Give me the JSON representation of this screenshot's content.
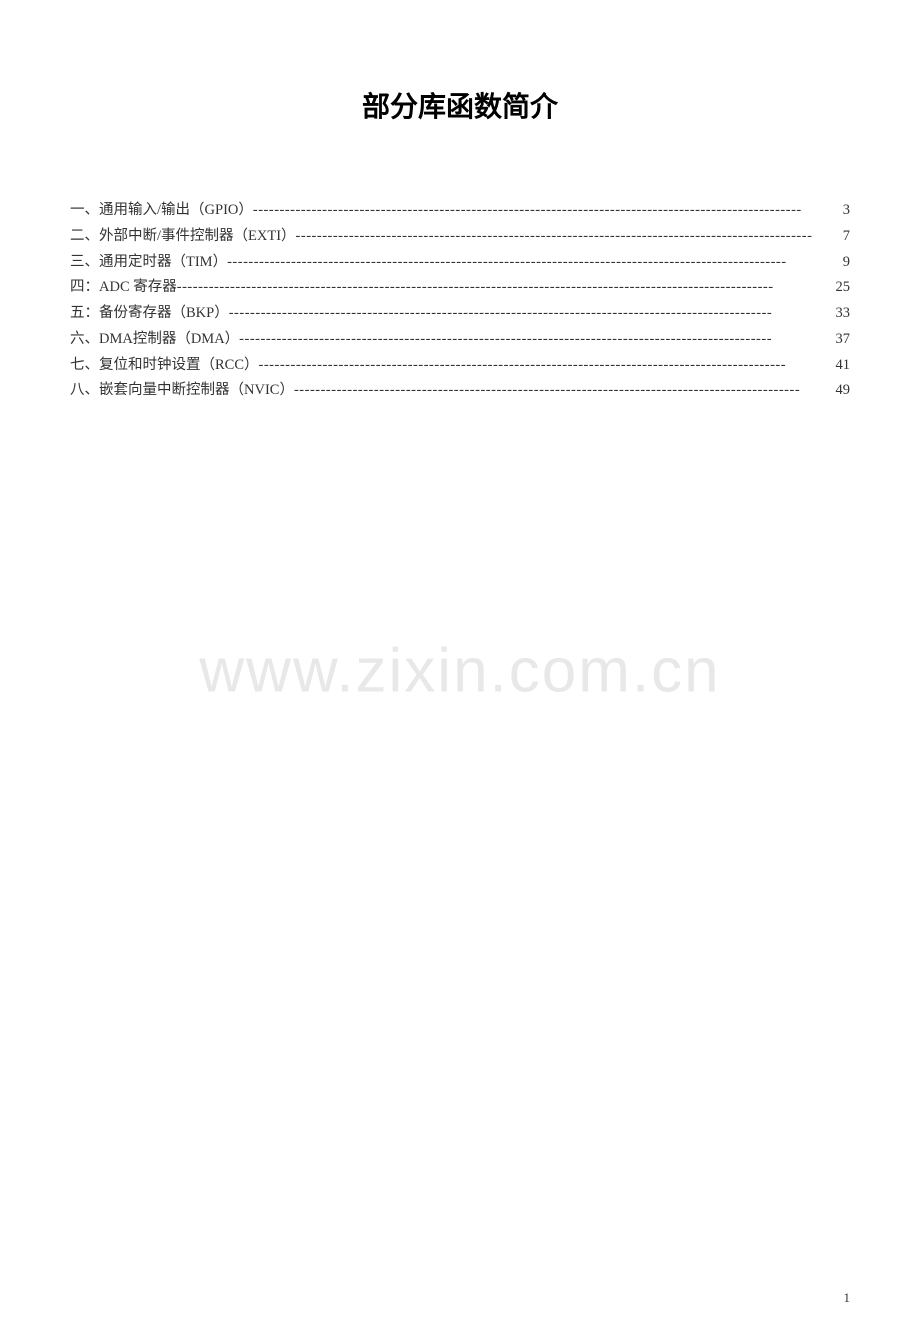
{
  "title": "部分库函数简介",
  "watermark": "www.zixin.com.cn",
  "page_number": "1",
  "colors": {
    "background": "#ffffff",
    "text": "#333333",
    "title": "#000000",
    "watermark": "#e8e8e8"
  },
  "typography": {
    "title_fontsize": 28,
    "toc_fontsize": 14.5,
    "watermark_fontsize": 62,
    "pagenum_fontsize": 13,
    "font_family": "SimSun"
  },
  "toc": {
    "items": [
      {
        "label": "一、通用输入/输出（GPIO）",
        "page": "3"
      },
      {
        "label": "二、外部中断/事件控制器（EXTI）",
        "page": "7"
      },
      {
        "label": "三、通用定时器（TIM）",
        "page": "9"
      },
      {
        "label": "四：ADC 寄存器",
        "page": "25"
      },
      {
        "label": "五：备份寄存器（BKP）",
        "page": "33"
      },
      {
        "label": "六、DMA控制器（DMA）",
        "page": "37"
      },
      {
        "label": "七、复位和时钟设置（RCC）",
        "page": "41"
      },
      {
        "label": "八、嵌套向量中断控制器（NVIC）",
        "page": "49"
      }
    ]
  }
}
